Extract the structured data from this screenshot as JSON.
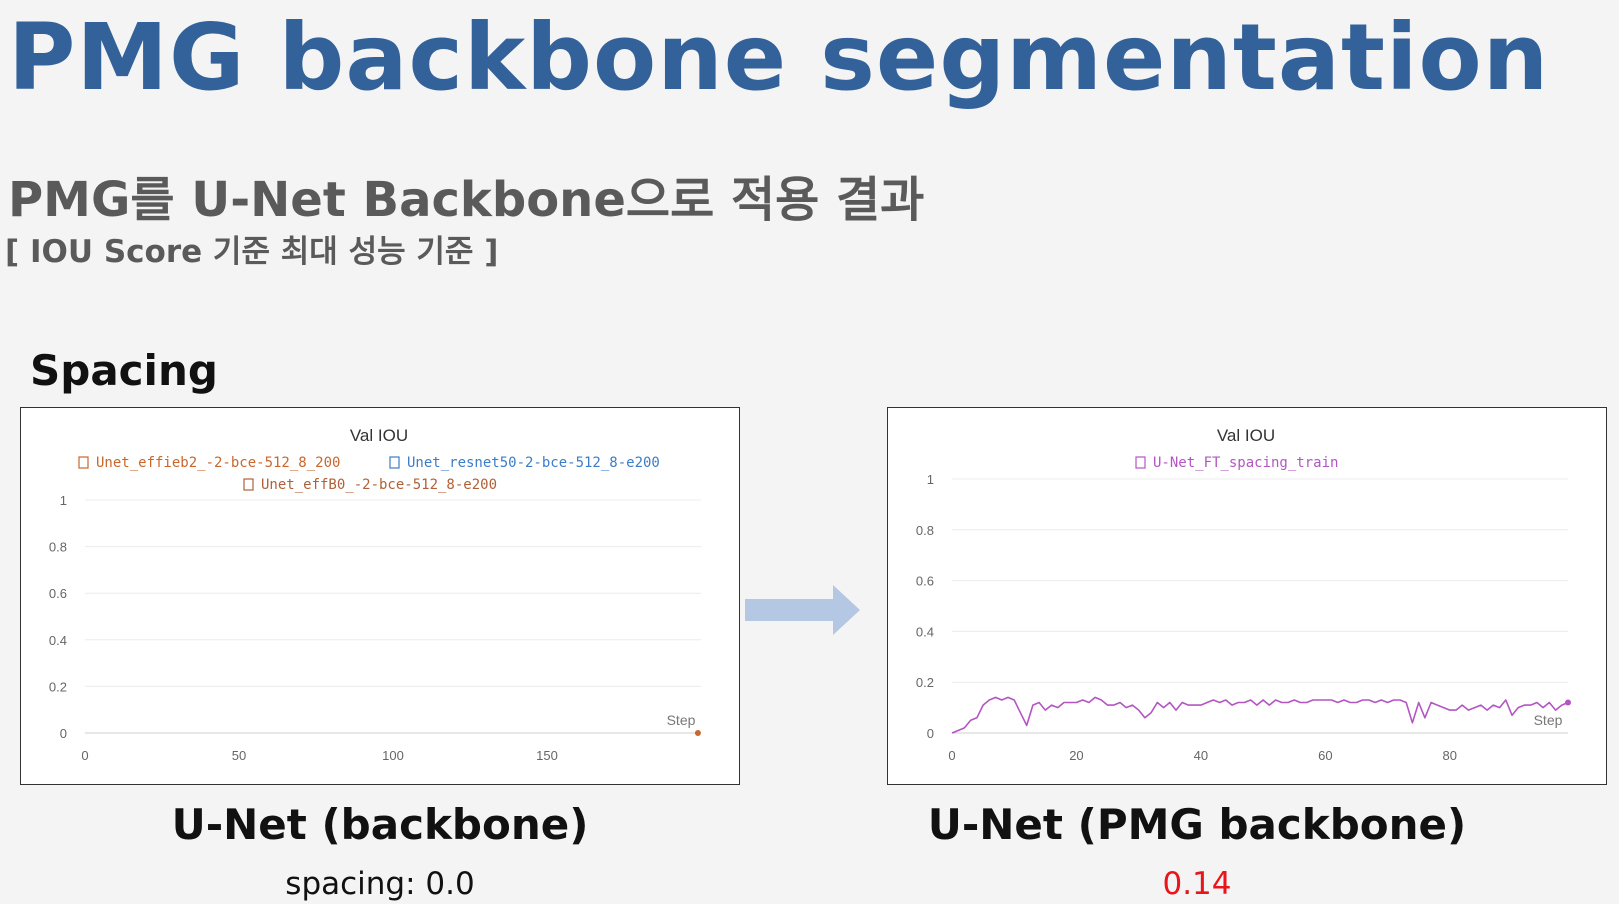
{
  "slide": {
    "title": "PMG backbone segmentation",
    "subtitle": "PMG를 U-Net Backbone으로 적용 결과",
    "criteria": "[ IOU Score 기준 최대 성능 기준 ]",
    "section_label": "Spacing"
  },
  "left": {
    "caption": "U-Net (backbone)",
    "score": "spacing: 0.0"
  },
  "right": {
    "caption": "U-Net (PMG backbone)",
    "score": "0.14"
  },
  "colors": {
    "title": "#33629a",
    "arrow": "#b4c7e3",
    "highlight_score": "#e8151a"
  },
  "chart_data": [
    {
      "type": "line",
      "title": "Val IOU",
      "xlabel": "Step",
      "ylabel": "",
      "xlim": [
        0,
        200
      ],
      "ylim": [
        0,
        1
      ],
      "x_ticks": [
        "0",
        "50",
        "100",
        "150"
      ],
      "y_ticks": [
        "0",
        "0.2",
        "0.4",
        "0.6",
        "0.8",
        "1"
      ],
      "grid": true,
      "legend_position": "top",
      "series": [
        {
          "name": "Unet_effieb2_-2-bce-512_8_200",
          "color": "#c9672f",
          "x": [
            199
          ],
          "y": [
            0
          ]
        },
        {
          "name": "Unet_resnet50-2-bce-512_8-e200",
          "color": "#3d7cc9",
          "x": [],
          "y": []
        },
        {
          "name": "Unet_effB0_-2-bce-512_8-e200",
          "color": "#b0603a",
          "x": [],
          "y": []
        }
      ]
    },
    {
      "type": "line",
      "title": "Val IOU",
      "xlabel": "Step",
      "ylabel": "",
      "xlim": [
        0,
        99
      ],
      "ylim": [
        0,
        1
      ],
      "x_ticks": [
        "0",
        "20",
        "40",
        "60",
        "80"
      ],
      "y_ticks": [
        "0",
        "0.2",
        "0.4",
        "0.6",
        "0.8",
        "1"
      ],
      "grid": true,
      "legend_position": "top",
      "series": [
        {
          "name": "U-Net_FT_spacing_train",
          "color": "#b455c4",
          "x": [
            0,
            1,
            2,
            3,
            4,
            5,
            6,
            7,
            8,
            9,
            10,
            11,
            12,
            13,
            14,
            15,
            16,
            17,
            18,
            19,
            20,
            21,
            22,
            23,
            24,
            25,
            26,
            27,
            28,
            29,
            30,
            31,
            32,
            33,
            34,
            35,
            36,
            37,
            38,
            39,
            40,
            41,
            42,
            43,
            44,
            45,
            46,
            47,
            48,
            49,
            50,
            51,
            52,
            53,
            54,
            55,
            56,
            57,
            58,
            59,
            60,
            61,
            62,
            63,
            64,
            65,
            66,
            67,
            68,
            69,
            70,
            71,
            72,
            73,
            74,
            75,
            76,
            77,
            78,
            79,
            80,
            81,
            82,
            83,
            84,
            85,
            86,
            87,
            88,
            89,
            90,
            91,
            92,
            93,
            94,
            95,
            96,
            97,
            98,
            99
          ],
          "y": [
            0.0,
            0.01,
            0.02,
            0.05,
            0.06,
            0.11,
            0.13,
            0.14,
            0.13,
            0.14,
            0.13,
            0.08,
            0.03,
            0.11,
            0.12,
            0.09,
            0.11,
            0.1,
            0.12,
            0.12,
            0.12,
            0.13,
            0.12,
            0.14,
            0.13,
            0.11,
            0.11,
            0.12,
            0.1,
            0.11,
            0.09,
            0.06,
            0.08,
            0.12,
            0.1,
            0.12,
            0.09,
            0.12,
            0.11,
            0.11,
            0.11,
            0.12,
            0.13,
            0.12,
            0.13,
            0.11,
            0.12,
            0.12,
            0.13,
            0.11,
            0.13,
            0.11,
            0.13,
            0.12,
            0.12,
            0.13,
            0.12,
            0.12,
            0.13,
            0.13,
            0.13,
            0.13,
            0.12,
            0.13,
            0.12,
            0.12,
            0.13,
            0.13,
            0.12,
            0.13,
            0.12,
            0.13,
            0.13,
            0.12,
            0.04,
            0.12,
            0.06,
            0.12,
            0.11,
            0.1,
            0.09,
            0.09,
            0.11,
            0.09,
            0.1,
            0.11,
            0.09,
            0.11,
            0.1,
            0.13,
            0.07,
            0.1,
            0.11,
            0.11,
            0.12,
            0.1,
            0.12,
            0.09,
            0.11,
            0.12
          ]
        }
      ]
    }
  ]
}
